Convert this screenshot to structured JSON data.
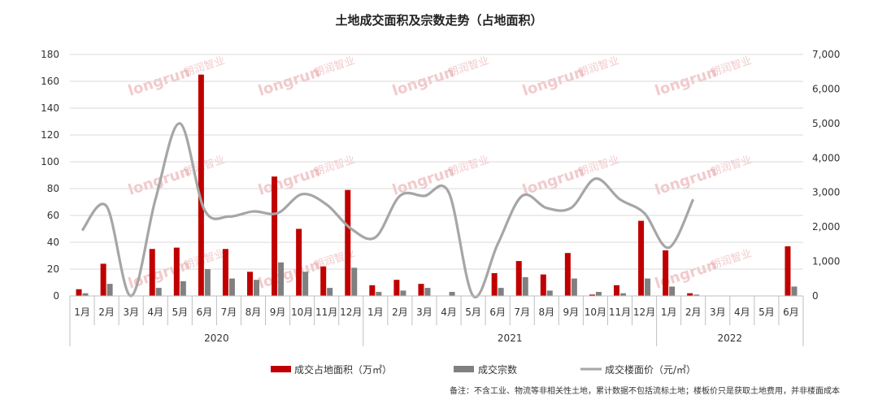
{
  "chart_data": {
    "type": "bar",
    "title": "土地成交面积及宗数走势（占地面积）",
    "left_axis": {
      "ylim": [
        0,
        180
      ],
      "ticks": [
        0,
        20,
        40,
        60,
        80,
        100,
        120,
        140,
        160,
        180
      ],
      "tick_labels": [
        "0",
        "20",
        "40",
        "60",
        "80",
        "100",
        "120",
        "140",
        "160",
        "180"
      ]
    },
    "right_axis": {
      "ylim": [
        0,
        7000
      ],
      "ticks": [
        0,
        1000,
        2000,
        3000,
        4000,
        5000,
        6000,
        7000
      ],
      "tick_labels": [
        "0",
        "1,000",
        "2,000",
        "3,000",
        "4,000",
        "5,000",
        "6,000",
        "7,000"
      ]
    },
    "categories": [
      "1月",
      "2月",
      "3月",
      "4月",
      "5月",
      "6月",
      "7月",
      "8月",
      "9月",
      "10月",
      "11月",
      "12月",
      "1月",
      "2月",
      "3月",
      "4月",
      "5月",
      "6月",
      "7月",
      "8月",
      "9月",
      "10月",
      "11月",
      "12月",
      "1月",
      "2月",
      "3月",
      "4月",
      "5月",
      "6月"
    ],
    "years": [
      {
        "label": "2020",
        "count": 12
      },
      {
        "label": "2021",
        "count": 12
      },
      {
        "label": "2022",
        "count": 6
      }
    ],
    "series": [
      {
        "name": "成交占地面积（万㎡）",
        "type": "bar",
        "axis": "left",
        "color": "#c00000",
        "values": [
          5,
          24,
          0,
          35,
          36,
          165,
          35,
          18,
          89,
          50,
          22,
          79,
          8,
          12,
          9,
          0,
          0,
          17,
          26,
          16,
          32,
          1,
          8,
          56,
          34,
          2,
          0,
          0,
          0,
          37
        ]
      },
      {
        "name": "成交宗数",
        "type": "bar",
        "axis": "left",
        "color": "#808080",
        "values": [
          2,
          9,
          0,
          6,
          11,
          20,
          13,
          12,
          25,
          18,
          6,
          21,
          3,
          4,
          6,
          3,
          0,
          6,
          14,
          4,
          13,
          3,
          2,
          13,
          7,
          1,
          0,
          0,
          0,
          7
        ]
      },
      {
        "name": "成交楼面价（元/㎡）",
        "type": "line",
        "axis": "right",
        "color": "#a6a6a6",
        "values": [
          1900,
          2600,
          0,
          2800,
          5000,
          2500,
          2300,
          2450,
          2400,
          2950,
          2650,
          1950,
          1700,
          2900,
          2900,
          3000,
          0,
          1500,
          2900,
          2550,
          2550,
          3400,
          2800,
          2400,
          1400,
          2800,
          null,
          null,
          null,
          null
        ]
      }
    ],
    "grid": true,
    "legend_position": "bottom"
  },
  "watermark": {
    "brand": "longrun",
    "brand_cn": "朗润智业"
  },
  "note": "备注：不含工业、物流等非相关性土地，累计数据不包括流标土地；楼板价只是获取土地费用，并非楼面成本"
}
